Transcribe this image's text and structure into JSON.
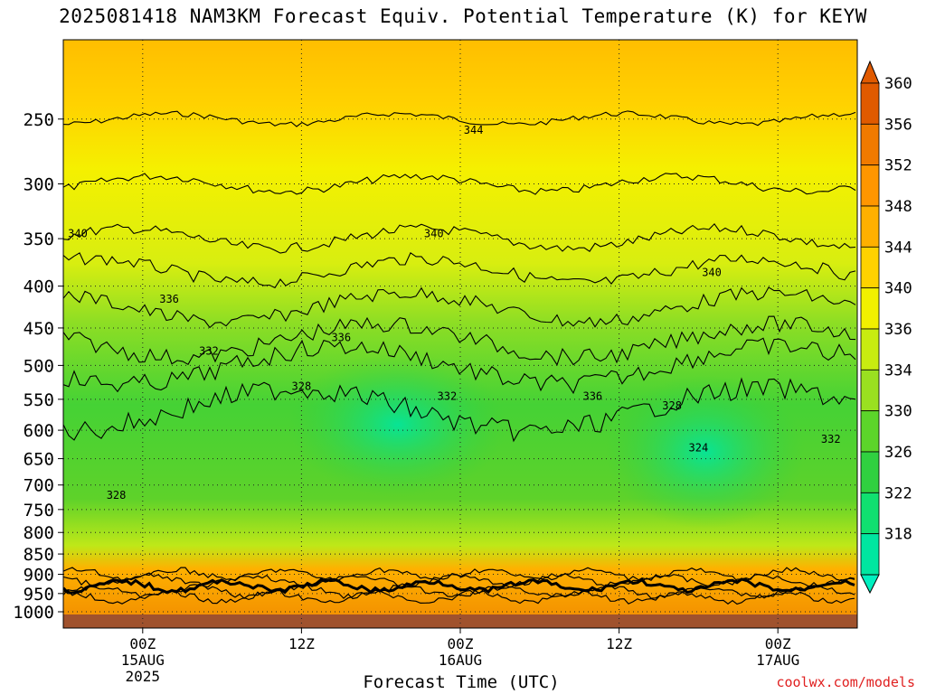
{
  "title": "2025081418 NAM3KM Forecast Equiv. Potential Temperature (K) for KEYW",
  "credit": "coolwx.com/models",
  "colors": {
    "band_318": "#00e6a0",
    "band_322": "#10e070",
    "band_326": "#30d040",
    "band_330": "#5cd52a",
    "band_334": "#9ae020",
    "band_336": "#c8ec10",
    "band_340": "#f2f000",
    "band_344": "#ffd200",
    "band_348": "#ffb000",
    "band_352": "#ff9600",
    "band_356": "#f07a00",
    "band_360": "#e05a00",
    "ground": "#a0522d",
    "contour": "#000000"
  },
  "chart_data": {
    "type": "heatmap",
    "title": "2025081418 NAM3KM Forecast Equiv. Potential Temperature (K) for KEYW",
    "xlabel": "Forecast Time (UTC)",
    "ylabel": "",
    "y_axis": {
      "scale": "log-pressure",
      "ticks": [
        "250",
        "300",
        "350",
        "400",
        "450",
        "500",
        "550",
        "600",
        "650",
        "700",
        "750",
        "800",
        "850",
        "900",
        "950",
        "1000"
      ],
      "ylim": [
        1000,
        200
      ]
    },
    "x_axis": {
      "ticks": [
        {
          "label": "00Z",
          "sub": "15AUG",
          "sub2": "2025",
          "hour": 6
        },
        {
          "label": "12Z",
          "sub": "",
          "sub2": "",
          "hour": 18
        },
        {
          "label": "00Z",
          "sub": "16AUG",
          "sub2": "",
          "hour": 30
        },
        {
          "label": "12Z",
          "sub": "",
          "sub2": "",
          "hour": 42
        },
        {
          "label": "00Z",
          "sub": "17AUG",
          "sub2": "",
          "hour": 54
        }
      ],
      "xlim_hours": [
        0,
        60
      ]
    },
    "colorbar": {
      "labels": [
        "360",
        "356",
        "352",
        "348",
        "344",
        "340",
        "336",
        "334",
        "330",
        "326",
        "322",
        "318"
      ]
    },
    "profile": [
      {
        "pressure": 200,
        "theta_e": 346
      },
      {
        "pressure": 250,
        "theta_e": 344
      },
      {
        "pressure": 300,
        "theta_e": 342
      },
      {
        "pressure": 350,
        "theta_e": 340
      },
      {
        "pressure": 400,
        "theta_e": 337
      },
      {
        "pressure": 450,
        "theta_e": 335
      },
      {
        "pressure": 500,
        "theta_e": 332
      },
      {
        "pressure": 600,
        "theta_e": 329
      },
      {
        "pressure": 700,
        "theta_e": 328
      },
      {
        "pressure": 800,
        "theta_e": 331
      },
      {
        "pressure": 900,
        "theta_e": 340
      },
      {
        "pressure": 950,
        "theta_e": 352
      },
      {
        "pressure": 1000,
        "theta_e": 354
      }
    ],
    "contour_labels": [
      {
        "text": "344",
        "hour": 31,
        "pressure": 258
      },
      {
        "text": "340",
        "hour": 0,
        "pressure": 345
      },
      {
        "text": "340",
        "hour": 28,
        "pressure": 345
      },
      {
        "text": "340",
        "hour": 49,
        "pressure": 385
      },
      {
        "text": "336",
        "hour": 8,
        "pressure": 415
      },
      {
        "text": "336",
        "hour": 21,
        "pressure": 462
      },
      {
        "text": "336",
        "hour": 40,
        "pressure": 545
      },
      {
        "text": "332",
        "hour": 11,
        "pressure": 480
      },
      {
        "text": "332",
        "hour": 29,
        "pressure": 545
      },
      {
        "text": "328",
        "hour": 18,
        "pressure": 530
      },
      {
        "text": "328",
        "hour": 46,
        "pressure": 560
      },
      {
        "text": "324",
        "hour": 48,
        "pressure": 630
      },
      {
        "text": "332",
        "hour": 58,
        "pressure": 615
      },
      {
        "text": "328",
        "hour": 4,
        "pressure": 720
      }
    ]
  }
}
